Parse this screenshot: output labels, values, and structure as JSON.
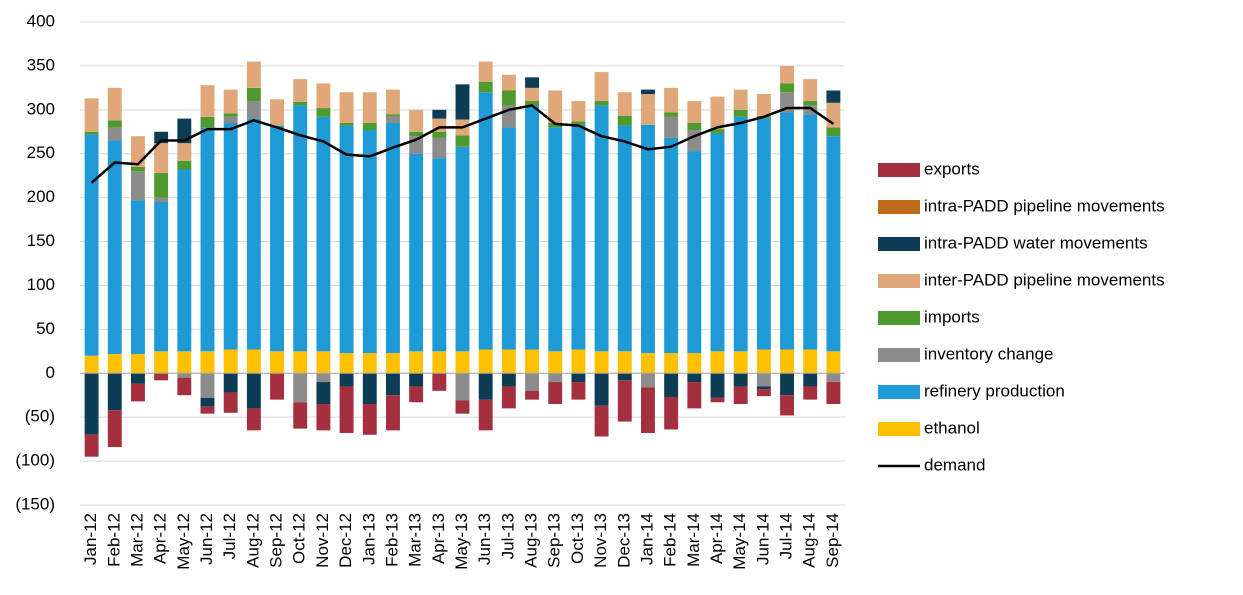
{
  "chart_data": {
    "type": "bar",
    "stacked": true,
    "categories": [
      "Jan-12",
      "Feb-12",
      "Mar-12",
      "Apr-12",
      "May-12",
      "Jun-12",
      "Jul-12",
      "Aug-12",
      "Sep-12",
      "Oct-12",
      "Nov-12",
      "Dec-12",
      "Jan-13",
      "Feb-13",
      "Mar-13",
      "Apr-13",
      "May-13",
      "Jun-13",
      "Jul-13",
      "Aug-13",
      "Sep-13",
      "Oct-13",
      "Nov-13",
      "Dec-13",
      "Jan-14",
      "Feb-14",
      "Mar-14",
      "Apr-14",
      "May-14",
      "Jun-14",
      "Jul-14",
      "Aug-14",
      "Sep-14"
    ],
    "series": [
      {
        "name": "ethanol",
        "color": "#ffc000",
        "values": [
          20,
          22,
          22,
          25,
          25,
          25,
          27,
          27,
          25,
          25,
          25,
          23,
          23,
          23,
          25,
          25,
          25,
          27,
          27,
          27,
          25,
          27,
          25,
          25,
          23,
          23,
          23,
          25,
          25,
          27,
          27,
          27,
          25
        ]
      },
      {
        "name": "refinery production",
        "color": "#1e9ad6",
        "values": [
          252,
          243,
          175,
          170,
          207,
          255,
          258,
          263,
          257,
          280,
          267,
          259,
          254,
          262,
          225,
          220,
          233,
          293,
          253,
          278,
          255,
          256,
          280,
          257,
          260,
          245,
          230,
          248,
          267,
          263,
          270,
          268,
          245
        ]
      },
      {
        "name": "inventory change",
        "color": "#8c8c8c",
        "values": [
          0,
          15,
          33,
          5,
          -5,
          -28,
          7,
          20,
          0,
          -33,
          -10,
          0,
          0,
          8,
          20,
          23,
          -31,
          0,
          25,
          -20,
          -10,
          0,
          0,
          0,
          -16,
          24,
          24,
          0,
          0,
          -15,
          23,
          10,
          -10
        ]
      },
      {
        "name": "imports",
        "color": "#4e9a2e",
        "values": [
          3,
          8,
          5,
          28,
          10,
          12,
          4,
          15,
          0,
          4,
          10,
          3,
          8,
          2,
          5,
          7,
          13,
          12,
          17,
          5,
          5,
          4,
          5,
          11,
          0,
          5,
          8,
          5,
          8,
          3,
          10,
          5,
          10
        ]
      },
      {
        "name": "inter-PADD pipeline movements",
        "color": "#e0a878",
        "values": [
          38,
          37,
          35,
          34,
          20,
          36,
          27,
          30,
          30,
          26,
          28,
          35,
          35,
          28,
          25,
          15,
          18,
          23,
          18,
          15,
          37,
          23,
          33,
          27,
          35,
          28,
          25,
          37,
          23,
          25,
          20,
          25,
          28
        ]
      },
      {
        "name": "intra-PADD water movements",
        "color": "#0d3c55",
        "values": [
          -70,
          -42,
          -12,
          13,
          28,
          -10,
          -22,
          -40,
          0,
          0,
          -25,
          -15,
          -35,
          -25,
          -15,
          10,
          40,
          -30,
          -15,
          12,
          0,
          -10,
          -37,
          -8,
          5,
          -27,
          -10,
          -28,
          -15,
          -3,
          -25,
          -15,
          14
        ]
      },
      {
        "name": "intra-PADD pipeline movements",
        "color": "#c06a1c",
        "values": [
          0,
          0,
          0,
          0,
          0,
          0,
          0,
          0,
          0,
          0,
          0,
          0,
          0,
          0,
          0,
          0,
          0,
          0,
          0,
          0,
          0,
          0,
          0,
          0,
          0,
          0,
          0,
          0,
          0,
          0,
          0,
          0,
          0
        ]
      },
      {
        "name": "exports",
        "color": "#a4303f",
        "values": [
          -25,
          -42,
          -20,
          -8,
          -20,
          -8,
          -23,
          -25,
          -30,
          -30,
          -30,
          -53,
          -35,
          -40,
          -18,
          -20,
          -15,
          -35,
          -25,
          -10,
          -25,
          -20,
          -35,
          -47,
          -52,
          -37,
          -30,
          -5,
          -20,
          -8,
          -23,
          -15,
          -25
        ]
      },
      {
        "name": "demand",
        "type": "line",
        "color": "#000000",
        "values": [
          217,
          240,
          238,
          265,
          265,
          278,
          278,
          288,
          280,
          271,
          264,
          249,
          247,
          257,
          266,
          280,
          280,
          290,
          300,
          305,
          284,
          282,
          270,
          264,
          255,
          258,
          270,
          280,
          285,
          292,
          302,
          302,
          284
        ]
      }
    ],
    "ylim": [
      -150,
      400
    ],
    "yticks": [
      {
        "value": -150,
        "label": "(150)"
      },
      {
        "value": -100,
        "label": "(100)"
      },
      {
        "value": -50,
        "label": "(50)"
      },
      0,
      50,
      100,
      150,
      200,
      250,
      300,
      350,
      400
    ],
    "grid": true,
    "legend": "right"
  }
}
